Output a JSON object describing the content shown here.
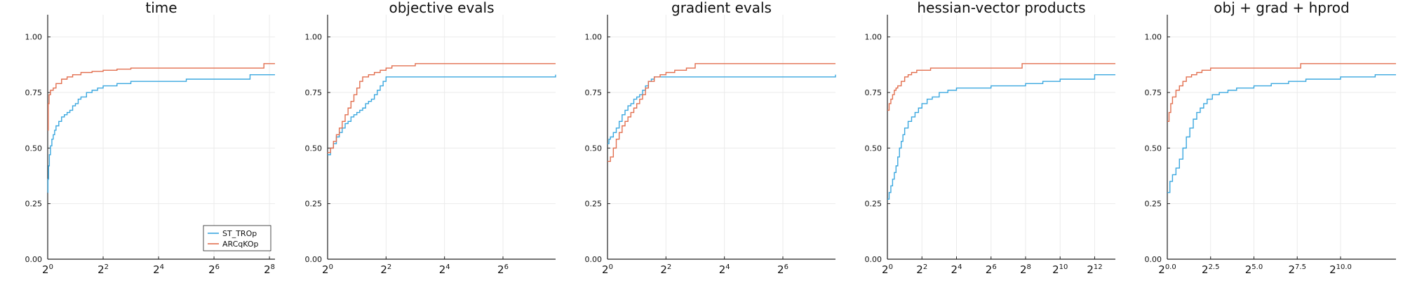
{
  "colors": {
    "st": "#3aa7df",
    "arc": "#e26f4f",
    "axis": "#222222",
    "grid": "#ebebeb",
    "text": "#111111"
  },
  "chart_data": [
    {
      "type": "line",
      "title": "time",
      "xscale": "log2",
      "xlim": [
        0,
        8.2
      ],
      "ylim": [
        0,
        1.1
      ],
      "grid": true,
      "legend": "bottom-right",
      "x_ticks": [
        {
          "v": 0,
          "b": "2",
          "e": "0"
        },
        {
          "v": 2,
          "b": "2",
          "e": "2"
        },
        {
          "v": 4,
          "b": "2",
          "e": "4"
        },
        {
          "v": 6,
          "b": "2",
          "e": "6"
        },
        {
          "v": 8,
          "b": "2",
          "e": "8"
        }
      ],
      "y_ticks": [
        "0.00",
        "0.25",
        "0.50",
        "0.75",
        "1.00"
      ],
      "series": [
        {
          "name": "ST_TROp",
          "color_key": "st",
          "x": [
            0,
            0.01,
            0.03,
            0.06,
            0.1,
            0.15,
            0.2,
            0.25,
            0.3,
            0.4,
            0.5,
            0.6,
            0.7,
            0.8,
            0.9,
            1.0,
            1.1,
            1.2,
            1.4,
            1.6,
            1.8,
            2.0,
            2.2,
            2.5,
            3.0,
            4.0,
            5.0,
            6.0,
            7.0,
            7.3,
            8.2
          ],
          "y": [
            0.3,
            0.36,
            0.42,
            0.47,
            0.51,
            0.54,
            0.56,
            0.58,
            0.6,
            0.62,
            0.64,
            0.65,
            0.66,
            0.67,
            0.69,
            0.7,
            0.72,
            0.73,
            0.75,
            0.76,
            0.77,
            0.78,
            0.78,
            0.79,
            0.8,
            0.8,
            0.81,
            0.81,
            0.81,
            0.83,
            0.83
          ]
        },
        {
          "name": "ARCqKOp",
          "color_key": "arc",
          "x": [
            0,
            0.02,
            0.05,
            0.1,
            0.2,
            0.3,
            0.5,
            0.7,
            0.9,
            1.2,
            1.6,
            2.0,
            2.5,
            3.0,
            4.0,
            5.0,
            6.0,
            7.0,
            7.8,
            8.2
          ],
          "y": [
            0.58,
            0.7,
            0.74,
            0.76,
            0.77,
            0.79,
            0.81,
            0.82,
            0.83,
            0.84,
            0.845,
            0.85,
            0.855,
            0.86,
            0.86,
            0.86,
            0.86,
            0.86,
            0.88,
            0.88
          ]
        }
      ]
    },
    {
      "type": "line",
      "title": "objective evals",
      "xscale": "log2",
      "xlim": [
        0,
        7.8
      ],
      "ylim": [
        0,
        1.1
      ],
      "grid": true,
      "x_ticks": [
        {
          "v": 0,
          "b": "2",
          "e": "0"
        },
        {
          "v": 2,
          "b": "2",
          "e": "2"
        },
        {
          "v": 4,
          "b": "2",
          "e": "4"
        },
        {
          "v": 6,
          "b": "2",
          "e": "6"
        }
      ],
      "y_ticks": [
        "0.00",
        "0.25",
        "0.50",
        "0.75",
        "1.00"
      ],
      "series": [
        {
          "name": "ST_TROp",
          "color_key": "st",
          "x": [
            0,
            0.1,
            0.2,
            0.3,
            0.4,
            0.5,
            0.6,
            0.7,
            0.8,
            0.9,
            1.0,
            1.1,
            1.2,
            1.3,
            1.4,
            1.5,
            1.6,
            1.7,
            1.8,
            1.9,
            2.0,
            3.0,
            4.0,
            5.0,
            6.0,
            7.0,
            7.8
          ],
          "y": [
            0.47,
            0.5,
            0.52,
            0.55,
            0.57,
            0.59,
            0.61,
            0.62,
            0.64,
            0.65,
            0.66,
            0.67,
            0.68,
            0.7,
            0.71,
            0.72,
            0.74,
            0.76,
            0.78,
            0.8,
            0.82,
            0.82,
            0.82,
            0.82,
            0.82,
            0.82,
            0.83
          ]
        },
        {
          "name": "ARCqKOp",
          "color_key": "arc",
          "x": [
            0,
            0.1,
            0.2,
            0.3,
            0.4,
            0.5,
            0.6,
            0.7,
            0.8,
            0.9,
            1.0,
            1.1,
            1.2,
            1.4,
            1.6,
            1.8,
            2.0,
            2.2,
            2.5,
            3.0,
            4.0,
            5.0,
            6.0,
            7.0,
            7.8
          ],
          "y": [
            0.48,
            0.5,
            0.53,
            0.56,
            0.59,
            0.62,
            0.65,
            0.68,
            0.71,
            0.74,
            0.77,
            0.8,
            0.82,
            0.83,
            0.84,
            0.85,
            0.86,
            0.87,
            0.87,
            0.88,
            0.88,
            0.88,
            0.88,
            0.88,
            0.88
          ]
        }
      ]
    },
    {
      "type": "line",
      "title": "gradient evals",
      "xscale": "log2",
      "xlim": [
        0,
        7.8
      ],
      "ylim": [
        0,
        1.1
      ],
      "grid": true,
      "x_ticks": [
        {
          "v": 0,
          "b": "2",
          "e": "0"
        },
        {
          "v": 2,
          "b": "2",
          "e": "2"
        },
        {
          "v": 4,
          "b": "2",
          "e": "4"
        },
        {
          "v": 6,
          "b": "2",
          "e": "6"
        }
      ],
      "y_ticks": [
        "0.00",
        "0.25",
        "0.50",
        "0.75",
        "1.00"
      ],
      "series": [
        {
          "name": "ST_TROp",
          "color_key": "st",
          "x": [
            0,
            0.05,
            0.1,
            0.2,
            0.3,
            0.4,
            0.5,
            0.6,
            0.7,
            0.8,
            0.9,
            1.0,
            1.1,
            1.2,
            1.3,
            1.4,
            1.5,
            1.6,
            2.0,
            3.0,
            4.0,
            5.0,
            6.0,
            7.0,
            7.8
          ],
          "y": [
            0.52,
            0.54,
            0.55,
            0.57,
            0.59,
            0.62,
            0.65,
            0.67,
            0.69,
            0.7,
            0.72,
            0.73,
            0.74,
            0.76,
            0.78,
            0.8,
            0.81,
            0.82,
            0.82,
            0.82,
            0.82,
            0.82,
            0.82,
            0.82,
            0.83
          ]
        },
        {
          "name": "ARCqKOp",
          "color_key": "arc",
          "x": [
            0,
            0.1,
            0.2,
            0.3,
            0.4,
            0.5,
            0.6,
            0.7,
            0.8,
            0.9,
            1.0,
            1.1,
            1.2,
            1.3,
            1.4,
            1.6,
            1.8,
            2.0,
            2.3,
            2.7,
            3.0,
            4.0,
            5.0,
            6.0,
            7.0,
            7.8
          ],
          "y": [
            0.44,
            0.46,
            0.5,
            0.54,
            0.57,
            0.6,
            0.62,
            0.64,
            0.66,
            0.68,
            0.7,
            0.72,
            0.74,
            0.77,
            0.8,
            0.82,
            0.83,
            0.84,
            0.85,
            0.86,
            0.88,
            0.88,
            0.88,
            0.88,
            0.88,
            0.88
          ]
        }
      ]
    },
    {
      "type": "line",
      "title": "hessian-vector products",
      "xscale": "log2",
      "xlim": [
        0,
        13.2
      ],
      "ylim": [
        0,
        1.1
      ],
      "grid": true,
      "x_ticks": [
        {
          "v": 0,
          "b": "2",
          "e": "0"
        },
        {
          "v": 2,
          "b": "2",
          "e": "2"
        },
        {
          "v": 4,
          "b": "2",
          "e": "4"
        },
        {
          "v": 6,
          "b": "2",
          "e": "6"
        },
        {
          "v": 8,
          "b": "2",
          "e": "8"
        },
        {
          "v": 10,
          "b": "2",
          "e": "10"
        },
        {
          "v": 12,
          "b": "2",
          "e": "12"
        }
      ],
      "y_ticks": [
        "0.00",
        "0.25",
        "0.50",
        "0.75",
        "1.00"
      ],
      "series": [
        {
          "name": "ST_TROp",
          "color_key": "st",
          "x": [
            0,
            0.1,
            0.2,
            0.3,
            0.4,
            0.5,
            0.6,
            0.7,
            0.8,
            0.9,
            1.0,
            1.2,
            1.4,
            1.6,
            1.8,
            2.0,
            2.3,
            2.6,
            3.0,
            3.5,
            4.0,
            5.0,
            6.0,
            7.0,
            8.0,
            9.0,
            10.0,
            11.0,
            12.0,
            13.2
          ],
          "y": [
            0.27,
            0.3,
            0.33,
            0.36,
            0.39,
            0.42,
            0.46,
            0.5,
            0.53,
            0.56,
            0.59,
            0.62,
            0.64,
            0.66,
            0.68,
            0.7,
            0.72,
            0.73,
            0.75,
            0.76,
            0.77,
            0.77,
            0.78,
            0.78,
            0.79,
            0.8,
            0.81,
            0.81,
            0.83,
            0.83
          ]
        },
        {
          "name": "ARCqKOp",
          "color_key": "arc",
          "x": [
            0,
            0.1,
            0.2,
            0.3,
            0.4,
            0.5,
            0.6,
            0.8,
            1.0,
            1.2,
            1.4,
            1.7,
            2.0,
            2.5,
            3.0,
            4.0,
            5.0,
            6.0,
            7.0,
            7.8,
            9.0,
            10.0,
            11.0,
            12.0,
            13.2
          ],
          "y": [
            0.67,
            0.7,
            0.72,
            0.74,
            0.76,
            0.77,
            0.78,
            0.8,
            0.82,
            0.83,
            0.84,
            0.85,
            0.85,
            0.86,
            0.86,
            0.86,
            0.86,
            0.86,
            0.86,
            0.88,
            0.88,
            0.88,
            0.88,
            0.88,
            0.88
          ]
        }
      ]
    },
    {
      "type": "line",
      "title": "obj + grad + hprod",
      "xscale": "log2",
      "xlim": [
        0,
        13.2
      ],
      "ylim": [
        0,
        1.1
      ],
      "grid": true,
      "x_ticks": [
        {
          "v": 0,
          "b": "2",
          "e": "0.0"
        },
        {
          "v": 2.5,
          "b": "2",
          "e": "2.5"
        },
        {
          "v": 5,
          "b": "2",
          "e": "5.0"
        },
        {
          "v": 7.5,
          "b": "2",
          "e": "7.5"
        },
        {
          "v": 10,
          "b": "2",
          "e": "10.0"
        }
      ],
      "y_ticks": [
        "0.00",
        "0.25",
        "0.50",
        "0.75",
        "1.00"
      ],
      "series": [
        {
          "name": "ST_TROp",
          "color_key": "st",
          "x": [
            0,
            0.15,
            0.3,
            0.5,
            0.7,
            0.9,
            1.1,
            1.3,
            1.5,
            1.7,
            1.9,
            2.1,
            2.3,
            2.6,
            3.0,
            3.5,
            4.0,
            5.0,
            6.0,
            7.0,
            8.0,
            9.0,
            10.0,
            11.0,
            12.0,
            13.2
          ],
          "y": [
            0.3,
            0.35,
            0.38,
            0.41,
            0.45,
            0.5,
            0.55,
            0.59,
            0.63,
            0.66,
            0.68,
            0.7,
            0.72,
            0.74,
            0.75,
            0.76,
            0.77,
            0.78,
            0.79,
            0.8,
            0.81,
            0.81,
            0.82,
            0.82,
            0.83,
            0.83
          ]
        },
        {
          "name": "ARCqKOp",
          "color_key": "arc",
          "x": [
            0,
            0.1,
            0.2,
            0.3,
            0.5,
            0.7,
            0.9,
            1.1,
            1.4,
            1.7,
            2.0,
            2.5,
            3.0,
            4.0,
            5.0,
            6.0,
            7.0,
            7.7,
            9.0,
            10.0,
            11.0,
            12.0,
            13.2
          ],
          "y": [
            0.62,
            0.66,
            0.7,
            0.73,
            0.76,
            0.78,
            0.8,
            0.82,
            0.83,
            0.84,
            0.85,
            0.86,
            0.86,
            0.86,
            0.86,
            0.86,
            0.86,
            0.88,
            0.88,
            0.88,
            0.88,
            0.88,
            0.88
          ]
        }
      ]
    }
  ]
}
